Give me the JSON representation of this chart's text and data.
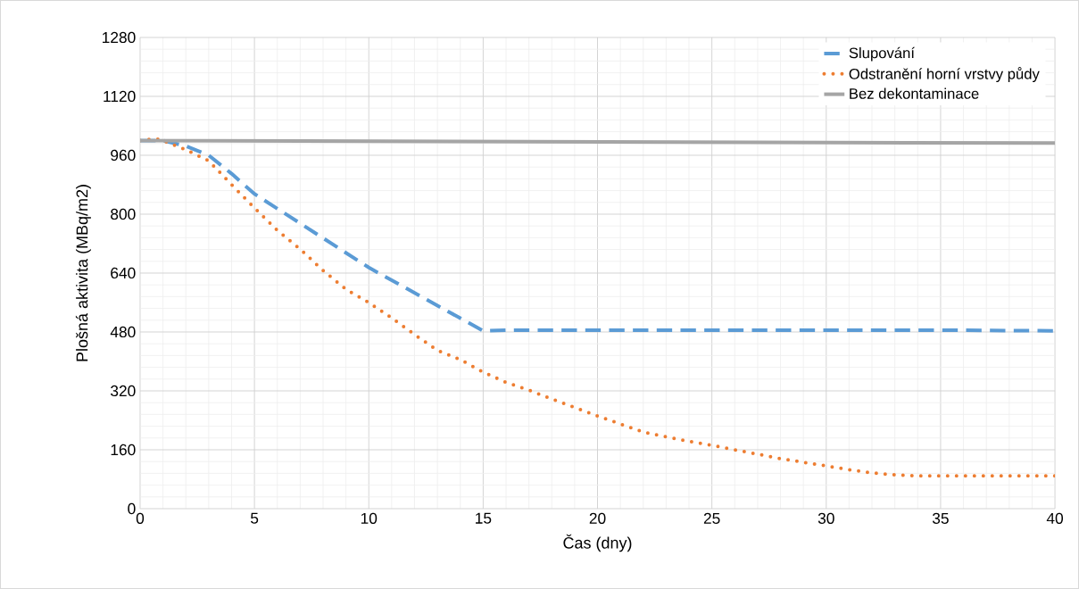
{
  "chart_data": {
    "type": "line",
    "xlabel": "Čas (dny)",
    "ylabel": "Plošná aktivita (MBq/m2)",
    "xlim": [
      0,
      40
    ],
    "ylim": [
      0,
      1280
    ],
    "xticks": [
      0,
      5,
      10,
      15,
      20,
      25,
      30,
      35,
      40
    ],
    "yticks": [
      0,
      160,
      320,
      480,
      640,
      800,
      960,
      1120,
      1280
    ],
    "grid": true,
    "legend": "top right",
    "marker": "none",
    "series": [
      {
        "name": "Slupování",
        "color": "#5b9bd5",
        "line_style": "dashed",
        "x": [
          0,
          1,
          2,
          3,
          4,
          5,
          10,
          15,
          16,
          20,
          25,
          30,
          35,
          40
        ],
        "values": [
          1000,
          1000,
          985,
          960,
          910,
          855,
          655,
          483,
          485,
          485,
          485,
          485,
          485,
          483
        ]
      },
      {
        "name": "Odstranění horní vrstvy půdy",
        "color": "#ed7d31",
        "line_style": "dotted",
        "x": [
          0,
          0.7,
          1,
          2,
          3,
          4,
          5,
          6,
          7,
          8,
          9,
          10,
          11,
          12,
          13,
          14,
          15,
          16,
          17,
          18,
          19,
          20,
          21,
          22,
          23,
          24,
          25,
          26,
          27,
          28,
          29,
          30,
          31,
          32,
          33,
          34,
          35,
          36,
          37,
          38,
          39,
          40
        ],
        "values": [
          1000,
          1005,
          1000,
          975,
          945,
          880,
          817,
          756,
          705,
          647,
          596,
          560,
          518,
          473,
          430,
          405,
          371,
          343,
          322,
          298,
          275,
          252,
          230,
          208,
          195,
          183,
          172,
          160,
          148,
          136,
          126,
          116,
          106,
          97,
          92,
          89,
          89,
          89,
          89,
          89,
          89,
          89
        ]
      },
      {
        "name": "Bez dekontaminace",
        "color": "#a5a5a5",
        "line_style": "solid",
        "x": [
          0,
          40
        ],
        "values": [
          1000,
          993
        ]
      }
    ]
  }
}
